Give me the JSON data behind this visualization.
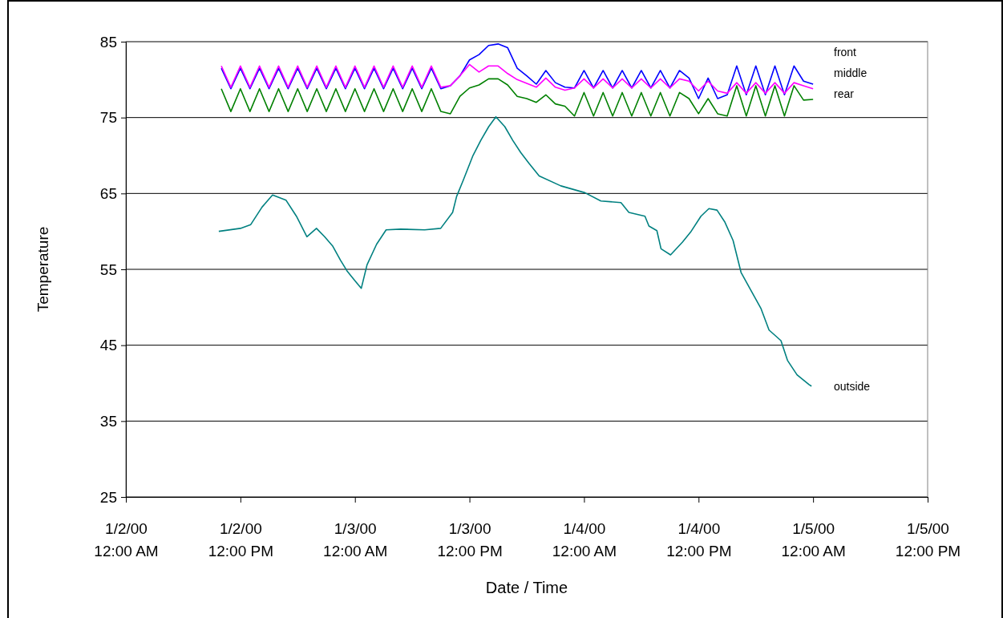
{
  "chart_data": {
    "type": "line",
    "xlabel": "Date / Time",
    "ylabel": "Temperature",
    "xlim": [
      "2000-01-02T00:00",
      "2000-01-05T12:00"
    ],
    "xticks": [
      {
        "value": "2000-01-02T00:00",
        "label": "1/2/00\n12:00 AM"
      },
      {
        "value": "2000-01-02T12:00",
        "label": "1/2/00\n12:00 PM"
      },
      {
        "value": "2000-01-03T00:00",
        "label": "1/3/00\n12:00 AM"
      },
      {
        "value": "2000-01-03T12:00",
        "label": "1/3/00\n12:00 PM"
      },
      {
        "value": "2000-01-04T00:00",
        "label": "1/4/00\n12:00 AM"
      },
      {
        "value": "2000-01-04T12:00",
        "label": "1/4/00\n12:00 PM"
      },
      {
        "value": "2000-01-05T00:00",
        "label": "1/5/00\n12:00 AM"
      },
      {
        "value": "2000-01-05T12:00",
        "label": "1/5/00\n12:00 PM"
      }
    ],
    "ylim": [
      25,
      85
    ],
    "yticks": [
      25,
      35,
      45,
      55,
      65,
      75,
      85
    ],
    "grid": "y",
    "legend": false,
    "marker": "none",
    "line_style": "solid",
    "x": [
      "2000-01-02T10:00",
      "2000-01-02T11:00",
      "2000-01-02T12:00",
      "2000-01-02T13:00",
      "2000-01-02T14:00",
      "2000-01-02T15:00",
      "2000-01-02T16:00",
      "2000-01-02T17:00",
      "2000-01-02T18:00",
      "2000-01-02T19:00",
      "2000-01-02T20:00",
      "2000-01-02T21:00",
      "2000-01-02T22:00",
      "2000-01-02T23:00",
      "2000-01-03T00:00",
      "2000-01-03T01:00",
      "2000-01-03T02:00",
      "2000-01-03T03:00",
      "2000-01-03T04:00",
      "2000-01-03T05:00",
      "2000-01-03T06:00",
      "2000-01-03T07:00",
      "2000-01-03T08:00",
      "2000-01-03T09:00",
      "2000-01-03T10:00",
      "2000-01-03T11:00",
      "2000-01-03T12:00",
      "2000-01-03T13:00",
      "2000-01-03T14:00",
      "2000-01-03T15:00",
      "2000-01-03T16:00",
      "2000-01-03T17:00",
      "2000-01-03T18:00",
      "2000-01-03T19:00",
      "2000-01-03T20:00",
      "2000-01-03T21:00",
      "2000-01-03T22:00",
      "2000-01-03T23:00",
      "2000-01-04T00:00",
      "2000-01-04T01:00",
      "2000-01-04T02:00",
      "2000-01-04T03:00",
      "2000-01-04T04:00",
      "2000-01-04T05:00",
      "2000-01-04T06:00",
      "2000-01-04T07:00",
      "2000-01-04T08:00",
      "2000-01-04T09:00",
      "2000-01-04T10:00",
      "2000-01-04T11:00",
      "2000-01-04T12:00",
      "2000-01-04T13:00",
      "2000-01-04T14:00",
      "2000-01-04T15:00",
      "2000-01-04T16:00",
      "2000-01-04T17:00",
      "2000-01-04T18:00",
      "2000-01-04T19:00",
      "2000-01-04T20:00",
      "2000-01-04T21:00",
      "2000-01-04T22:00",
      "2000-01-04T23:00",
      "2000-01-05T00:00"
    ],
    "series": [
      {
        "name": "front",
        "color": "#0000ff",
        "values": [
          81.5,
          78.8,
          81.5,
          78.8,
          81.5,
          78.8,
          81.5,
          78.8,
          81.5,
          78.8,
          81.5,
          78.8,
          81.5,
          78.8,
          81.5,
          78.8,
          81.5,
          78.8,
          81.5,
          78.8,
          81.5,
          78.8,
          81.5,
          78.8,
          79.2,
          80.5,
          82.6,
          83.3,
          84.5,
          84.7,
          84.2,
          81.5,
          80.5,
          79.4,
          81.2,
          79.6,
          79.0,
          78.9,
          81.2,
          78.9,
          81.2,
          78.9,
          81.2,
          78.9,
          81.2,
          78.9,
          81.2,
          78.9,
          81.2,
          80.2,
          77.5,
          80.2,
          77.5,
          78.0,
          81.8,
          78.0,
          81.8,
          78.0,
          81.8,
          78.0,
          81.8,
          79.8,
          79.4
        ]
      },
      {
        "name": "middle",
        "color": "#ff00ff",
        "values": [
          81.8,
          79.0,
          81.8,
          79.0,
          81.8,
          79.0,
          81.8,
          79.0,
          81.8,
          79.0,
          81.8,
          79.0,
          81.8,
          79.0,
          81.8,
          79.0,
          81.8,
          79.0,
          81.8,
          79.0,
          81.8,
          79.0,
          81.8,
          79.0,
          79.2,
          80.5,
          82.0,
          81.0,
          81.8,
          81.8,
          80.8,
          80.0,
          79.5,
          79.0,
          80.2,
          79.0,
          78.6,
          78.9,
          80.1,
          78.9,
          80.1,
          78.9,
          80.1,
          78.9,
          80.1,
          78.9,
          80.1,
          78.9,
          80.1,
          79.8,
          78.5,
          79.8,
          78.5,
          78.2,
          79.6,
          78.2,
          79.6,
          78.2,
          79.6,
          78.2,
          79.6,
          79.2,
          78.8
        ]
      },
      {
        "name": "rear",
        "color": "#008000",
        "values": [
          78.8,
          75.8,
          78.8,
          75.8,
          78.8,
          75.8,
          78.8,
          75.8,
          78.8,
          75.8,
          78.8,
          75.8,
          78.8,
          75.8,
          78.8,
          75.8,
          78.8,
          75.8,
          78.8,
          75.8,
          78.8,
          75.8,
          78.8,
          75.8,
          75.5,
          77.8,
          78.9,
          79.3,
          80.1,
          80.1,
          79.3,
          77.8,
          77.5,
          77.0,
          78.0,
          76.8,
          76.5,
          75.2,
          78.3,
          75.2,
          78.3,
          75.2,
          78.3,
          75.2,
          78.3,
          75.2,
          78.3,
          75.2,
          78.3,
          77.5,
          75.5,
          77.5,
          75.5,
          75.2,
          79.2,
          75.2,
          79.2,
          75.2,
          79.2,
          75.2,
          79.2,
          77.3,
          77.4
        ]
      },
      {
        "name": "outside",
        "color": "#008080",
        "x": [
          "2000-01-02T09:44",
          "2000-01-02T12:00",
          "2000-01-02T13:05",
          "2000-01-02T14:16",
          "2000-01-02T15:22",
          "2000-01-02T16:47",
          "2000-01-02T17:52",
          "2000-01-02T18:58",
          "2000-01-02T19:58",
          "2000-01-02T20:49",
          "2000-01-02T21:39",
          "2000-01-02T22:29",
          "2000-01-02T23:10",
          "2000-01-03T00:00",
          "2000-01-03T00:40",
          "2000-01-03T01:16",
          "2000-01-03T02:16",
          "2000-01-03T03:16",
          "2000-01-03T04:47",
          "2000-01-03T07:18",
          "2000-01-03T08:59",
          "2000-01-03T10:14",
          "2000-01-03T10:39",
          "2000-01-03T11:20",
          "2000-01-03T12:20",
          "2000-01-03T13:11",
          "2000-01-03T14:01",
          "2000-01-03T14:46",
          "2000-01-03T15:42",
          "2000-01-03T16:32",
          "2000-01-03T17:22",
          "2000-01-03T18:13",
          "2000-01-03T19:18",
          "2000-01-03T21:34",
          "2000-01-04T00:05",
          "2000-01-04T01:46",
          "2000-01-04T03:52",
          "2000-01-04T04:42",
          "2000-01-04T06:23",
          "2000-01-04T06:48",
          "2000-01-04T07:38",
          "2000-01-04T08:04",
          "2000-01-04T09:04",
          "2000-01-04T10:19",
          "2000-01-04T11:10",
          "2000-01-04T12:15",
          "2000-01-04T13:05",
          "2000-01-04T13:56",
          "2000-01-04T14:46",
          "2000-01-04T15:37",
          "2000-01-04T16:27",
          "2000-01-04T17:17",
          "2000-01-04T18:33",
          "2000-01-04T19:23",
          "2000-01-04T20:38",
          "2000-01-04T21:19",
          "2000-01-04T22:19",
          "2000-01-04T23:35",
          "2000-01-04T23:50"
        ],
        "values": [
          60.0,
          60.4,
          60.9,
          63.2,
          64.8,
          64.1,
          62.0,
          59.3,
          60.4,
          59.3,
          58.1,
          56.2,
          54.8,
          53.5,
          52.5,
          55.6,
          58.3,
          60.2,
          60.3,
          60.2,
          60.4,
          62.5,
          64.6,
          66.7,
          69.9,
          72.0,
          73.8,
          75.1,
          73.8,
          72.0,
          70.4,
          69.0,
          67.3,
          66.0,
          65.1,
          64.0,
          63.8,
          62.5,
          62.0,
          60.7,
          60.1,
          57.7,
          56.9,
          58.6,
          59.9,
          62.0,
          63.0,
          62.8,
          61.2,
          58.8,
          54.6,
          52.7,
          49.8,
          47.0,
          45.6,
          43.0,
          41.1,
          39.8,
          39.6
        ]
      }
    ]
  }
}
